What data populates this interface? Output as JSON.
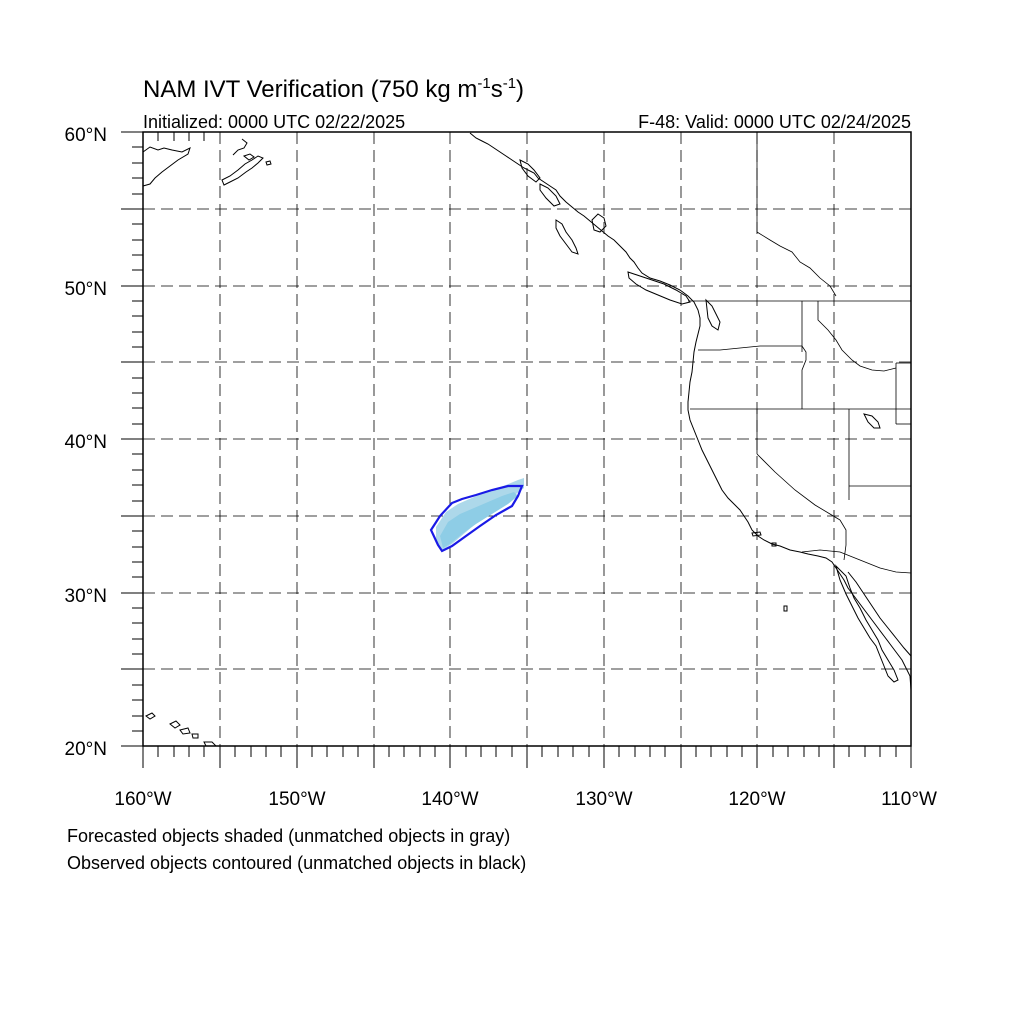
{
  "title": {
    "main": "NAM IVT Verification (750 kg m",
    "exp1": "-1",
    "mid": "s",
    "exp2": "-1",
    "close": ")"
  },
  "initialized": "Initialized: 0000 UTC 02/22/2025",
  "valid": "F-48: Valid: 0000 UTC 02/24/2025",
  "lat_labels": [
    "60°N",
    "50°N",
    "40°N",
    "30°N",
    "20°N"
  ],
  "lon_labels": [
    "160°W",
    "150°W",
    "140°W",
    "130°W",
    "120°W",
    "110°W"
  ],
  "lat_values": [
    60,
    50,
    40,
    30,
    20
  ],
  "lon_values": [
    -160,
    -150,
    -140,
    -130,
    -120,
    -110
  ],
  "extent": {
    "lon": [
      -160,
      -110
    ],
    "lat": [
      20,
      60
    ]
  },
  "footer": {
    "line1": "Forecasted objects shaded (unmatched objects in gray)",
    "line2": "Observed objects contoured (unmatched objects in black)"
  },
  "colors": {
    "forecast_fill": "#8ecde6",
    "forecast_fill_light": "#add8ea",
    "observed_contour": "#1a1ae6",
    "coast": "#000000"
  }
}
